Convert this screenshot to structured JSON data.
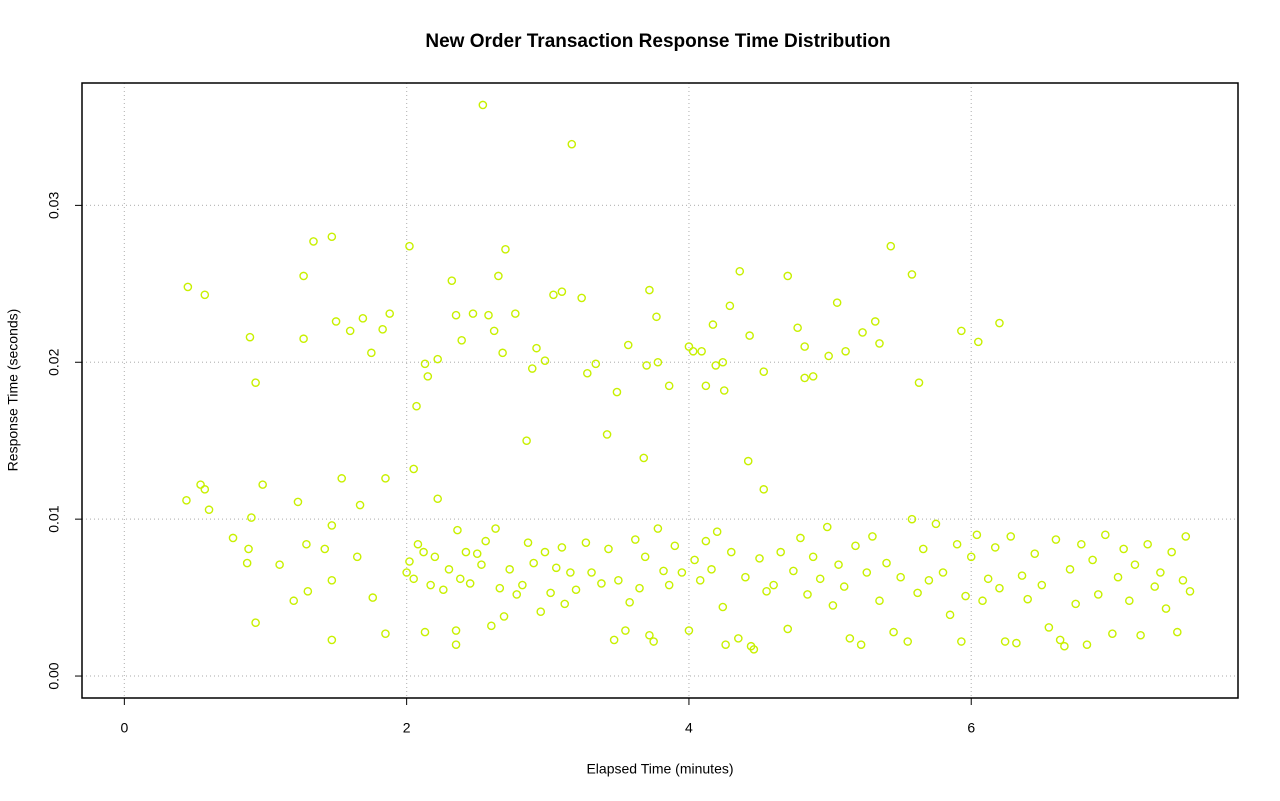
{
  "chart_data": {
    "type": "scatter",
    "title": "New Order Transaction Response Time Distribution",
    "x_label": "Elapsed Time (minutes)",
    "y_label": "Response Time (seconds)",
    "xlim": [
      -0.3,
      7.89
    ],
    "ylim": [
      -0.0014,
      0.0378
    ],
    "xticks": [
      0,
      2,
      4,
      6
    ],
    "yticks": [
      {
        "value": 0,
        "label": "0.00"
      },
      {
        "value": 0.01,
        "label": "0.01"
      },
      {
        "value": 0.02,
        "label": "0.02"
      },
      {
        "value": 0.03,
        "label": "0.03"
      }
    ],
    "grid": true,
    "series": [
      {
        "color": "#c8f000",
        "x": [
          0.44,
          0.45,
          0.54,
          0.57,
          0.57,
          0.6,
          0.77,
          0.89,
          0.87,
          0.88,
          0.9,
          0.93,
          0.93,
          0.98,
          1.1,
          1.2,
          1.23,
          1.27,
          1.27,
          1.29,
          1.3,
          1.34,
          1.42,
          1.47,
          1.47,
          1.47,
          1.47,
          1.5,
          1.54,
          1.6,
          1.65,
          1.67,
          1.69,
          1.75,
          1.76,
          1.83,
          1.85,
          1.88,
          1.85,
          2.0,
          2.02,
          2.05,
          2.07,
          2.13,
          2.15,
          2.13,
          2.22,
          2.22,
          2.32,
          2.35,
          2.39,
          2.35,
          2.35,
          2.47,
          2.54,
          2.58,
          2.62,
          2.65,
          2.68,
          2.7,
          2.77,
          2.85,
          2.89,
          2.92,
          2.98,
          3.04,
          3.1,
          3.17,
          3.24,
          3.28,
          3.34,
          3.42,
          3.49,
          3.57,
          3.68,
          3.7,
          3.72,
          3.77,
          3.78,
          3.86,
          4.0,
          4.03,
          4.09,
          4.12,
          4.17,
          4.19,
          4.24,
          4.25,
          4.29,
          4.36,
          4.42,
          4.43,
          4.53,
          4.53,
          4.7,
          4.77,
          4.82,
          4.82,
          4.88,
          4.99,
          5.05,
          5.11,
          5.23,
          5.32,
          5.35,
          5.43,
          5.58,
          5.63,
          5.93,
          6.05,
          6.2,
          2.02,
          2.05,
          2.08,
          2.12,
          2.17,
          2.2,
          2.26,
          2.3,
          2.36,
          2.38,
          2.42,
          2.45,
          2.5,
          2.53,
          2.56,
          2.6,
          2.63,
          2.66,
          2.69,
          2.73,
          2.78,
          2.82,
          2.86,
          2.9,
          2.95,
          2.98,
          3.02,
          3.06,
          3.1,
          3.12,
          3.16,
          3.2,
          3.27,
          3.31,
          3.38,
          3.43,
          3.47,
          3.5,
          3.55,
          3.58,
          3.62,
          3.65,
          3.69,
          3.72,
          3.75,
          3.78,
          3.82,
          3.86,
          3.9,
          3.95,
          4.0,
          4.04,
          4.08,
          4.12,
          4.16,
          4.2,
          4.24,
          4.26,
          4.3,
          4.35,
          4.4,
          4.44,
          4.46,
          4.5,
          4.55,
          4.6,
          4.65,
          4.7,
          4.74,
          4.79,
          4.84,
          4.88,
          4.93,
          4.98,
          5.02,
          5.06,
          5.1,
          5.14,
          5.18,
          5.22,
          5.26,
          5.3,
          5.35,
          5.4,
          5.45,
          5.5,
          5.55,
          5.58,
          5.62,
          5.66,
          5.7,
          5.75,
          5.8,
          5.85,
          5.9,
          5.93,
          5.96,
          6.0,
          6.04,
          6.08,
          6.12,
          6.17,
          6.2,
          6.24,
          6.28,
          6.32,
          6.36,
          6.4,
          6.45,
          6.5,
          6.55,
          6.6,
          6.63,
          6.66,
          6.7,
          6.74,
          6.78,
          6.82,
          6.86,
          6.9,
          6.95,
          7.0,
          7.04,
          7.08,
          7.12,
          7.16,
          7.2,
          7.25,
          7.3,
          7.34,
          7.38,
          7.42,
          7.46,
          7.5,
          7.52,
          7.55
        ],
        "values": [
          0.0112,
          0.0248,
          0.0122,
          0.0119,
          0.0243,
          0.0106,
          0.0088,
          0.0216,
          0.0072,
          0.0081,
          0.0101,
          0.0187,
          0.0034,
          0.0122,
          0.0071,
          0.0048,
          0.0111,
          0.0255,
          0.0215,
          0.0084,
          0.0054,
          0.0277,
          0.0081,
          0.028,
          0.0096,
          0.0023,
          0.0061,
          0.0226,
          0.0126,
          0.022,
          0.0076,
          0.0109,
          0.0228,
          0.0206,
          0.005,
          0.0221,
          0.0126,
          0.0231,
          0.0027,
          0.0066,
          0.0274,
          0.0132,
          0.0172,
          0.0199,
          0.0191,
          0.0028,
          0.0202,
          0.0113,
          0.0252,
          0.023,
          0.0214,
          0.0029,
          0.002,
          0.0231,
          0.0364,
          0.023,
          0.022,
          0.0255,
          0.0206,
          0.0272,
          0.0231,
          0.015,
          0.0196,
          0.0209,
          0.0201,
          0.0243,
          0.0245,
          0.0339,
          0.0241,
          0.0193,
          0.0199,
          0.0154,
          0.0181,
          0.0211,
          0.0139,
          0.0198,
          0.0246,
          0.0229,
          0.02,
          0.0185,
          0.021,
          0.0207,
          0.0207,
          0.0185,
          0.0224,
          0.0198,
          0.02,
          0.0182,
          0.0236,
          0.0258,
          0.0137,
          0.0217,
          0.0194,
          0.0119,
          0.0255,
          0.0222,
          0.021,
          0.019,
          0.0191,
          0.0204,
          0.0238,
          0.0207,
          0.0219,
          0.0226,
          0.0212,
          0.0274,
          0.0256,
          0.0187,
          0.022,
          0.0213,
          0.0225,
          0.0073,
          0.0062,
          0.0084,
          0.0079,
          0.0058,
          0.0076,
          0.0055,
          0.0068,
          0.0093,
          0.0062,
          0.0079,
          0.0059,
          0.0078,
          0.0071,
          0.0086,
          0.0032,
          0.0094,
          0.0056,
          0.0038,
          0.0068,
          0.0052,
          0.0058,
          0.0085,
          0.0072,
          0.0041,
          0.0079,
          0.0053,
          0.0069,
          0.0082,
          0.0046,
          0.0066,
          0.0055,
          0.0085,
          0.0066,
          0.0059,
          0.0081,
          0.0023,
          0.0061,
          0.0029,
          0.0047,
          0.0087,
          0.0056,
          0.0076,
          0.0026,
          0.0022,
          0.0094,
          0.0067,
          0.0058,
          0.0083,
          0.0066,
          0.0029,
          0.0074,
          0.0061,
          0.0086,
          0.0068,
          0.0092,
          0.0044,
          0.002,
          0.0079,
          0.0024,
          0.0063,
          0.0019,
          0.0017,
          0.0075,
          0.0054,
          0.0058,
          0.0079,
          0.003,
          0.0067,
          0.0088,
          0.0052,
          0.0076,
          0.0062,
          0.0095,
          0.0045,
          0.0071,
          0.0057,
          0.0024,
          0.0083,
          0.002,
          0.0066,
          0.0089,
          0.0048,
          0.0072,
          0.0028,
          0.0063,
          0.0022,
          0.01,
          0.0053,
          0.0081,
          0.0061,
          0.0097,
          0.0066,
          0.0039,
          0.0084,
          0.0022,
          0.0051,
          0.0076,
          0.009,
          0.0048,
          0.0062,
          0.0082,
          0.0056,
          0.0022,
          0.0089,
          0.0021,
          0.0064,
          0.0049,
          0.0078,
          0.0058,
          0.0031,
          0.0087,
          0.0023,
          0.0019,
          0.0068,
          0.0046,
          0.0084,
          0.002,
          0.0074,
          0.0052,
          0.009,
          0.0027,
          0.0063,
          0.0081,
          0.0048,
          0.0071,
          0.0026,
          0.0084,
          0.0057,
          0.0066,
          0.0043,
          0.0079,
          0.0028,
          0.0061,
          0.0089,
          0.0054
        ]
      }
    ]
  }
}
